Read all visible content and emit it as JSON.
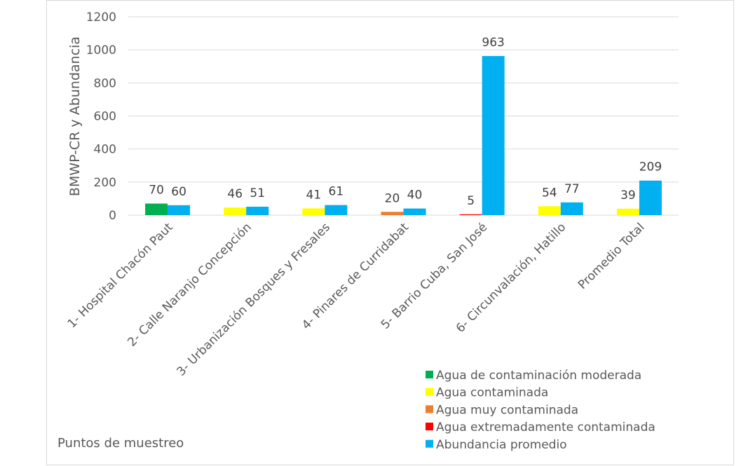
{
  "chart_data": {
    "type": "bar",
    "xlabel": "Puntos de muestreo",
    "ylabel": "BMWP-CR y Abundancia",
    "ylim": [
      0,
      1200
    ],
    "yticks": [
      0,
      200,
      400,
      600,
      800,
      1000,
      1200
    ],
    "grid": true,
    "legend_position": "bottom-right",
    "categories": [
      "1- Hospital Chacón Paut",
      "2- Calle Naranjo Concepción",
      "3- Urbanización Bosques y Fresales",
      "4- Pinares de Curridabat",
      "5- Barrio Cuba, San José",
      "6- Circunvalación, Hatillo",
      "Promedio Total"
    ],
    "bmwp": {
      "values": [
        70,
        46,
        41,
        20,
        5,
        54,
        39
      ],
      "classes": [
        "Agua de contaminación moderada",
        "Agua contaminada",
        "Agua contaminada",
        "Agua muy contaminada",
        "Agua extremadamente contaminada",
        "Agua contaminada",
        "Agua contaminada"
      ]
    },
    "abundance": {
      "name": "Abundancia promedio",
      "values": [
        60,
        51,
        61,
        40,
        963,
        77,
        209
      ],
      "color": "#00B0F0"
    },
    "legend": [
      {
        "label": "Agua de contaminación moderada",
        "color": "#00B050"
      },
      {
        "label": "Agua contaminada",
        "color": "#FFFF00"
      },
      {
        "label": "Agua muy contaminada",
        "color": "#ED7D31"
      },
      {
        "label": "Agua extremadamente contaminada",
        "color": "#FF0000"
      },
      {
        "label": "Abundancia promedio",
        "color": "#00B0F0"
      }
    ]
  }
}
